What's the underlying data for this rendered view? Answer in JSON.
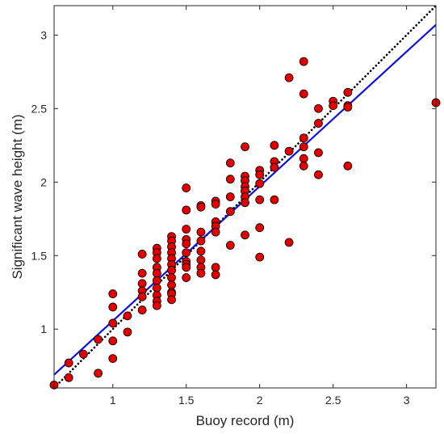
{
  "chart_data": {
    "type": "scatter",
    "xlabel": "Buoy record (m)",
    "ylabel": "Significant wave height (m)",
    "xlim": [
      0.6,
      3.2
    ],
    "ylim": [
      0.6,
      3.2
    ],
    "xticks": [
      1,
      1.5,
      2,
      2.5,
      3
    ],
    "yticks": [
      1,
      1.5,
      2,
      2.5,
      3
    ],
    "xtick_labels": [
      "1",
      "1.5",
      "2",
      "2.5",
      "3"
    ],
    "ytick_labels": [
      "1",
      "1.5",
      "2",
      "2.5",
      "3"
    ],
    "grid": false,
    "box": true,
    "marker_color": "#e00000",
    "marker_edge": "#000000",
    "fit_line": {
      "style": "solid",
      "color": "#1010e0",
      "x": [
        0.6,
        3.2
      ],
      "y": [
        0.69,
        3.07
      ]
    },
    "identity_line": {
      "style": "dotted",
      "color": "#000000",
      "x": [
        0.6,
        3.2
      ],
      "y": [
        0.6,
        3.2
      ]
    },
    "points": [
      [
        0.6,
        0.62
      ],
      [
        0.7,
        0.77
      ],
      [
        0.7,
        0.67
      ],
      [
        0.8,
        0.83
      ],
      [
        0.9,
        0.93
      ],
      [
        0.9,
        0.7
      ],
      [
        1.0,
        1.24
      ],
      [
        1.0,
        1.15
      ],
      [
        1.0,
        1.04
      ],
      [
        1.0,
        0.92
      ],
      [
        1.0,
        0.8
      ],
      [
        1.1,
        1.09
      ],
      [
        1.1,
        0.98
      ],
      [
        1.2,
        1.51
      ],
      [
        1.2,
        1.38
      ],
      [
        1.2,
        1.31
      ],
      [
        1.2,
        1.26
      ],
      [
        1.2,
        1.22
      ],
      [
        1.2,
        1.13
      ],
      [
        1.3,
        1.55
      ],
      [
        1.3,
        1.52
      ],
      [
        1.3,
        1.48
      ],
      [
        1.3,
        1.42
      ],
      [
        1.3,
        1.38
      ],
      [
        1.3,
        1.33
      ],
      [
        1.3,
        1.28
      ],
      [
        1.3,
        1.23
      ],
      [
        1.3,
        1.19
      ],
      [
        1.3,
        1.16
      ],
      [
        1.4,
        1.63
      ],
      [
        1.4,
        1.6
      ],
      [
        1.4,
        1.56
      ],
      [
        1.4,
        1.52
      ],
      [
        1.4,
        1.48
      ],
      [
        1.4,
        1.44
      ],
      [
        1.4,
        1.4
      ],
      [
        1.4,
        1.35
      ],
      [
        1.4,
        1.3
      ],
      [
        1.4,
        1.25
      ],
      [
        1.4,
        1.24
      ],
      [
        1.4,
        1.2
      ],
      [
        1.5,
        1.96
      ],
      [
        1.5,
        1.81
      ],
      [
        1.5,
        1.68
      ],
      [
        1.5,
        1.61
      ],
      [
        1.5,
        1.58
      ],
      [
        1.5,
        1.52
      ],
      [
        1.5,
        1.46
      ],
      [
        1.5,
        1.44
      ],
      [
        1.5,
        1.42
      ],
      [
        1.5,
        1.35
      ],
      [
        1.6,
        1.84
      ],
      [
        1.6,
        1.83
      ],
      [
        1.6,
        1.66
      ],
      [
        1.6,
        1.6
      ],
      [
        1.6,
        1.53
      ],
      [
        1.6,
        1.47
      ],
      [
        1.6,
        1.42
      ],
      [
        1.6,
        1.38
      ],
      [
        1.7,
        1.87
      ],
      [
        1.7,
        1.85
      ],
      [
        1.7,
        1.73
      ],
      [
        1.7,
        1.7
      ],
      [
        1.7,
        1.66
      ],
      [
        1.7,
        1.42
      ],
      [
        1.7,
        1.37
      ],
      [
        1.8,
        2.13
      ],
      [
        1.8,
        2.02
      ],
      [
        1.8,
        1.9
      ],
      [
        1.8,
        1.8
      ],
      [
        1.8,
        1.57
      ],
      [
        1.9,
        2.24
      ],
      [
        1.9,
        2.04
      ],
      [
        1.9,
        2.01
      ],
      [
        1.9,
        1.97
      ],
      [
        1.9,
        1.94
      ],
      [
        1.9,
        1.9
      ],
      [
        1.9,
        1.86
      ],
      [
        1.9,
        1.64
      ],
      [
        2.0,
        2.08
      ],
      [
        2.0,
        2.05
      ],
      [
        2.0,
        1.99
      ],
      [
        2.0,
        1.88
      ],
      [
        2.0,
        1.69
      ],
      [
        2.0,
        1.49
      ],
      [
        2.1,
        2.25
      ],
      [
        2.1,
        2.14
      ],
      [
        2.1,
        2.1
      ],
      [
        2.1,
        1.88
      ],
      [
        2.2,
        2.71
      ],
      [
        2.2,
        2.21
      ],
      [
        2.2,
        1.59
      ],
      [
        2.3,
        2.82
      ],
      [
        2.3,
        2.6
      ],
      [
        2.3,
        2.3
      ],
      [
        2.3,
        2.24
      ],
      [
        2.3,
        2.16
      ],
      [
        2.3,
        2.11
      ],
      [
        2.4,
        2.5
      ],
      [
        2.4,
        2.4
      ],
      [
        2.4,
        2.2
      ],
      [
        2.4,
        2.05
      ],
      [
        2.5,
        2.55
      ],
      [
        2.5,
        2.52
      ],
      [
        2.6,
        2.61
      ],
      [
        2.6,
        2.52
      ],
      [
        2.6,
        2.51
      ],
      [
        2.6,
        2.11
      ],
      [
        3.2,
        2.54
      ]
    ]
  }
}
